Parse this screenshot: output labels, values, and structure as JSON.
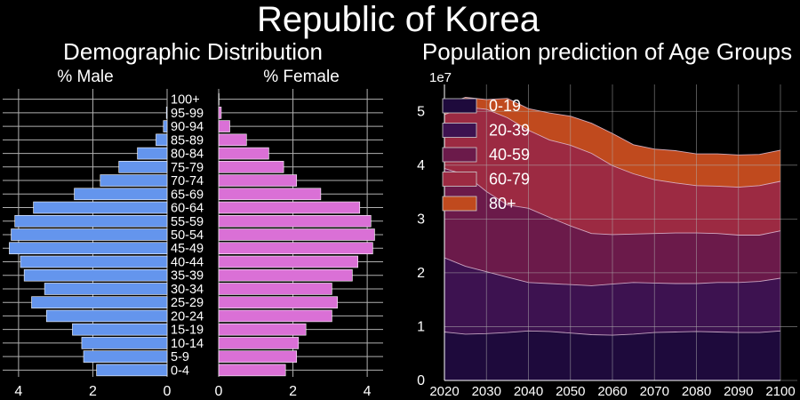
{
  "title": "Republic of Korea",
  "colors": {
    "male": "#6495ed",
    "female": "#da70d6",
    "background": "#000000"
  },
  "chart_data": [
    {
      "type": "bar",
      "orientation": "horizontal",
      "title": "Demographic Distribution",
      "categories": [
        "0-4",
        "5-9",
        "10-14",
        "15-19",
        "20-24",
        "25-29",
        "30-34",
        "35-39",
        "40-44",
        "45-49",
        "50-54",
        "55-59",
        "60-64",
        "65-69",
        "70-74",
        "75-79",
        "80-84",
        "85-89",
        "90-94",
        "95-99",
        "100+"
      ],
      "series": [
        {
          "name": "% Male",
          "values": [
            1.9,
            2.25,
            2.3,
            2.55,
            3.25,
            3.65,
            3.3,
            3.85,
            3.95,
            4.25,
            4.2,
            4.1,
            3.6,
            2.5,
            1.8,
            1.3,
            0.8,
            0.3,
            0.1,
            0.02,
            0.0
          ]
        },
        {
          "name": "% Female",
          "values": [
            1.8,
            2.1,
            2.15,
            2.35,
            3.05,
            3.2,
            3.05,
            3.6,
            3.75,
            4.15,
            4.2,
            4.1,
            3.8,
            2.75,
            2.1,
            1.75,
            1.35,
            0.75,
            0.3,
            0.07,
            0.01
          ]
        }
      ],
      "male_ticks": [
        "4",
        "2",
        "0"
      ],
      "female_ticks": [
        "0",
        "2",
        "4"
      ],
      "xlim_male": [
        4.5,
        0
      ],
      "xlim_female": [
        0,
        4.5
      ],
      "grid": true
    },
    {
      "type": "area",
      "stacked": true,
      "title": "Population prediction of Age Groups",
      "x": [
        2020,
        2025,
        2030,
        2035,
        2040,
        2045,
        2050,
        2055,
        2060,
        2065,
        2070,
        2075,
        2080,
        2085,
        2090,
        2095,
        2100
      ],
      "series": [
        {
          "name": "0-19",
          "color": "#1e0a3c",
          "values": [
            9000000.0,
            8600000.0,
            8700000.0,
            8900000.0,
            9200000.0,
            9100000.0,
            8800000.0,
            8500000.0,
            8400000.0,
            8600000.0,
            8900000.0,
            9000000.0,
            9100000.0,
            9000000.0,
            8900000.0,
            8900000.0,
            9200000.0
          ]
        },
        {
          "name": "20-39",
          "color": "#3d1250",
          "values": [
            13800000.0,
            12600000.0,
            11500000.0,
            10300000.0,
            9000000.0,
            8900000.0,
            9000000.0,
            9100000.0,
            9500000.0,
            9600000.0,
            9200000.0,
            9000000.0,
            8900000.0,
            9200000.0,
            9300000.0,
            9500000.0,
            9800000.0
          ]
        },
        {
          "name": "40-59",
          "color": "#6b1a4a",
          "values": [
            16600000.0,
            17000000.0,
            14900000.0,
            13400000.0,
            13800000.0,
            12300000.0,
            10900000.0,
            9700000.0,
            9200000.0,
            9000000.0,
            9200000.0,
            9400000.0,
            9400000.0,
            9100000.0,
            8800000.0,
            8600000.0,
            8800000.0
          ]
        },
        {
          "name": "60-79",
          "color": "#9c2a42",
          "values": [
            10000000.0,
            12600000.0,
            15300000.0,
            16200000.0,
            14500000.0,
            14400000.0,
            15000000.0,
            14900000.0,
            12800000.0,
            11200000.0,
            10000000.0,
            9300000.0,
            8800000.0,
            8800000.0,
            8900000.0,
            9200000.0,
            9200000.0
          ]
        },
        {
          "name": "80+",
          "color": "#c04a1e",
          "values": [
            1800000.0,
            1800000.0,
            1800000.0,
            3600000.0,
            4000000.0,
            5000000.0,
            5400000.0,
            5600000.0,
            6000000.0,
            5400000.0,
            5700000.0,
            6000000.0,
            5900000.0,
            6000000.0,
            6000000.0,
            5800000.0,
            5800000.0
          ]
        }
      ],
      "xlim": [
        2020,
        2100
      ],
      "ylim": [
        0,
        55000000
      ],
      "x_ticks": [
        "2020",
        "2030",
        "2040",
        "2050",
        "2060",
        "2070",
        "2080",
        "2090",
        "2100"
      ],
      "y_ticks": [
        "0",
        "1",
        "2",
        "3",
        "4",
        "5"
      ],
      "y_scale_label": "1e7",
      "legend": "top-left",
      "grid": true
    }
  ]
}
